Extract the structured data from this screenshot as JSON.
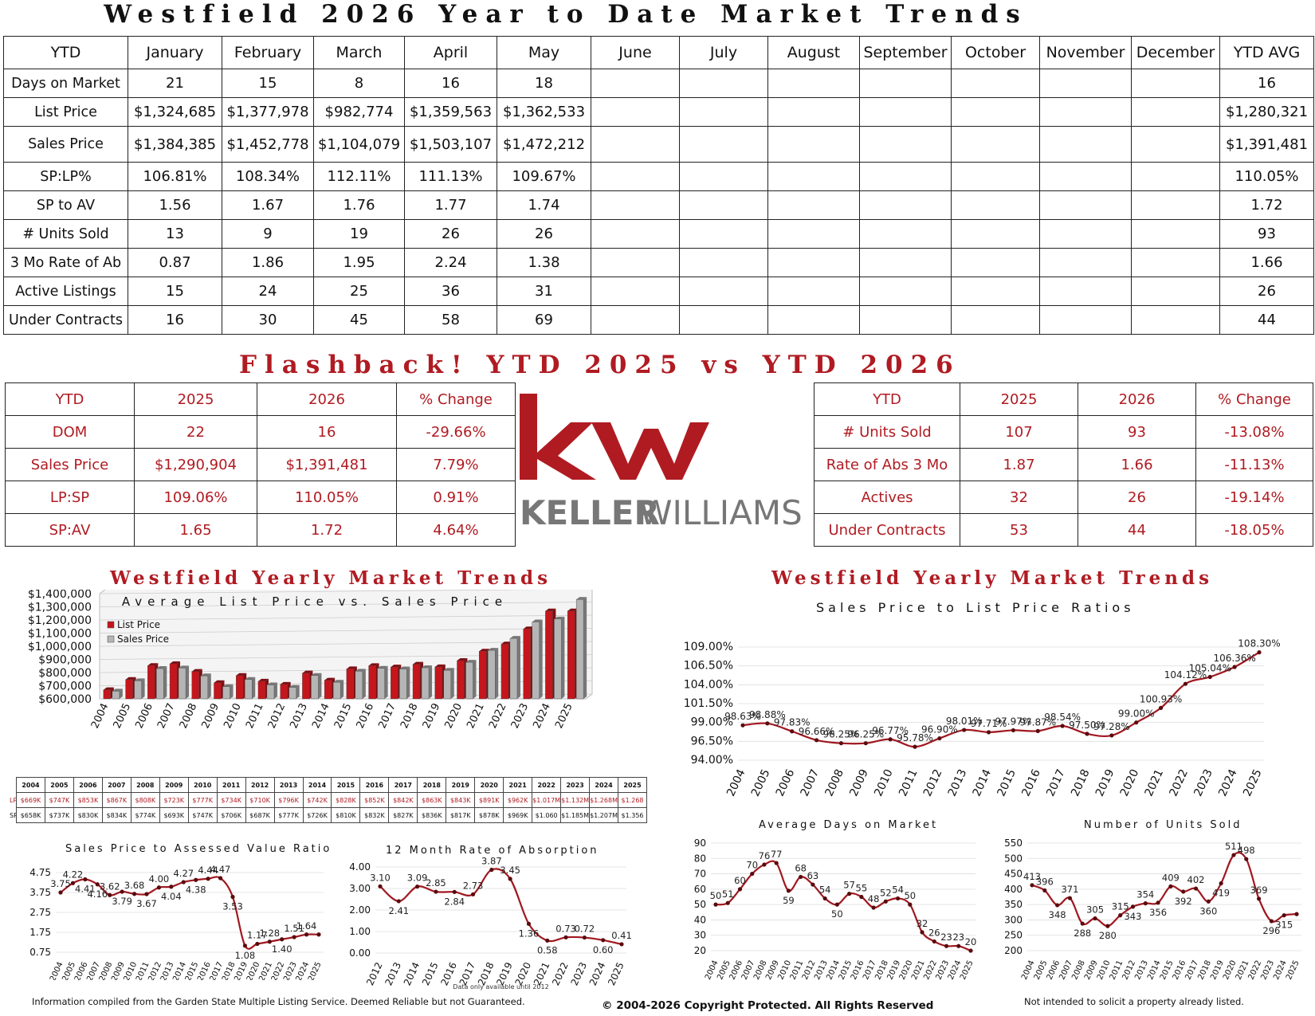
{
  "title": "Westfield 2026 Year to Date Market Trends",
  "ytd_table": {
    "header": [
      "YTD",
      "January",
      "February",
      "March",
      "April",
      "May",
      "June",
      "July",
      "August",
      "September",
      "October",
      "November",
      "December",
      "YTD AVG"
    ],
    "rows": [
      {
        "label": "Days on Market",
        "values": [
          "21",
          "15",
          "8",
          "16",
          "18",
          "",
          "",
          "",
          "",
          "",
          "",
          ""
        ],
        "avg": "16"
      },
      {
        "label": "List Price",
        "values": [
          "$1,324,685",
          "$1,377,978",
          "$982,774",
          "$1,359,563",
          "$1,362,533",
          "",
          "",
          "",
          "",
          "",
          "",
          ""
        ],
        "avg": "$1,280,321"
      },
      {
        "label": "Sales Price",
        "values": [
          "$1,384,385",
          "$1,452,778",
          "$1,104,079",
          "$1,503,107",
          "$1,472,212",
          "",
          "",
          "",
          "",
          "",
          "",
          ""
        ],
        "avg": "$1,391,481"
      },
      {
        "label": "SP:LP%",
        "values": [
          "106.81%",
          "108.34%",
          "112.11%",
          "111.13%",
          "109.67%",
          "",
          "",
          "",
          "",
          "",
          "",
          ""
        ],
        "avg": "110.05%"
      },
      {
        "label": "SP to AV",
        "values": [
          "1.56",
          "1.67",
          "1.76",
          "1.77",
          "1.74",
          "",
          "",
          "",
          "",
          "",
          "",
          ""
        ],
        "avg": "1.72"
      },
      {
        "label": "# Units Sold",
        "values": [
          "13",
          "9",
          "19",
          "26",
          "26",
          "",
          "",
          "",
          "",
          "",
          "",
          ""
        ],
        "avg": "93"
      },
      {
        "label": "3 Mo Rate of Ab",
        "values": [
          "0.87",
          "1.86",
          "1.95",
          "2.24",
          "1.38",
          "",
          "",
          "",
          "",
          "",
          "",
          ""
        ],
        "avg": "1.66"
      },
      {
        "label": "Active Listings",
        "values": [
          "15",
          "24",
          "25",
          "36",
          "31",
          "",
          "",
          "",
          "",
          "",
          "",
          ""
        ],
        "avg": "26"
      },
      {
        "label": "Under Contracts",
        "values": [
          "16",
          "30",
          "45",
          "58",
          "69",
          "",
          "",
          "",
          "",
          "",
          "",
          ""
        ],
        "avg": "44"
      }
    ]
  },
  "flashback_title": "Flashback!  YTD 2025 vs YTD 2026",
  "compare_left": {
    "header": [
      "YTD",
      "2025",
      "2026",
      "% Change"
    ],
    "rows": [
      [
        "DOM",
        "22",
        "16",
        "-29.66%"
      ],
      [
        "Sales Price",
        "$1,290,904",
        "$1,391,481",
        "7.79%"
      ],
      [
        "LP:SP",
        "109.06%",
        "110.05%",
        "0.91%"
      ],
      [
        "SP:AV",
        "1.65",
        "1.72",
        "4.64%"
      ]
    ]
  },
  "compare_right": {
    "header": [
      "YTD",
      "2025",
      "2026",
      "% Change"
    ],
    "rows": [
      [
        "# Units Sold",
        "107",
        "93",
        "-13.08%"
      ],
      [
        "Rate of Abs 3 Mo",
        "1.87",
        "1.66",
        "-11.13%"
      ],
      [
        "Actives",
        "32",
        "26",
        "-19.14%"
      ],
      [
        "Under Contracts",
        "53",
        "44",
        "-18.05%"
      ]
    ]
  },
  "logo": {
    "mark": "kw",
    "wordmark_bold": "KELLER",
    "wordmark_light": "WILLIAMS"
  },
  "left_section_title": "Westfield Yearly Market Trends",
  "right_section_title": "Westfield Yearly Market Trends",
  "yearly_table": {
    "years": [
      "2004",
      "2005",
      "2006",
      "2007",
      "2008",
      "2009",
      "2010",
      "2011",
      "2012",
      "2013",
      "2014",
      "2015",
      "2016",
      "2017",
      "2018",
      "2019",
      "2020",
      "2021",
      "2022",
      "2023",
      "2024",
      "2025"
    ],
    "lp_label": "LP",
    "sp_label": "SP",
    "lp": [
      "$669K",
      "$747K",
      "$853K",
      "$867K",
      "$808K",
      "$723K",
      "$777K",
      "$734K",
      "$710K",
      "$796K",
      "$742K",
      "$828K",
      "$852K",
      "$842K",
      "$863K",
      "$843K",
      "$891K",
      "$962K",
      "$1.017M",
      "$1.132M",
      "$1.268M",
      "$1.268"
    ],
    "sp": [
      "$658K",
      "$737K",
      "$830K",
      "$834K",
      "$774K",
      "$693K",
      "$747K",
      "$706K",
      "$687K",
      "$777K",
      "$726K",
      "$810K",
      "$832K",
      "$827K",
      "$836K",
      "$817K",
      "$878K",
      "$969K",
      "$1.060",
      "$1.185M",
      "$1.207M",
      "$1.356"
    ]
  },
  "footer": {
    "left": "Information compiled from the Garden State Multiple Listing Service.  Deemed Reliable but not Guaranteed.",
    "center": "© 2004-2026 Copyright Protected.  All Rights Reserved",
    "right": "Not intended to solicit a property already listed."
  },
  "colors": {
    "accent": "#b01b22",
    "gray_bar": "#b5b5b5",
    "line": "#a01820"
  },
  "chart_data": [
    {
      "id": "lp-sp",
      "type": "bar",
      "title": "Average List Price vs. Sales Price",
      "categories": [
        "2004",
        "2005",
        "2006",
        "2007",
        "2008",
        "2009",
        "2010",
        "2011",
        "2012",
        "2013",
        "2014",
        "2015",
        "2016",
        "2017",
        "2018",
        "2019",
        "2020",
        "2021",
        "2022",
        "2023",
        "2024",
        "2025"
      ],
      "series": [
        {
          "name": "List Price",
          "values": [
            669000,
            747000,
            853000,
            867000,
            808000,
            723000,
            777000,
            734000,
            710000,
            796000,
            742000,
            828000,
            852000,
            842000,
            863000,
            843000,
            891000,
            962000,
            1017000,
            1132000,
            1268000,
            1268000
          ]
        },
        {
          "name": "Sales Price",
          "values": [
            658000,
            737000,
            830000,
            834000,
            774000,
            693000,
            747000,
            706000,
            687000,
            777000,
            726000,
            810000,
            832000,
            827000,
            836000,
            817000,
            878000,
            969000,
            1060000,
            1185000,
            1207000,
            1356000
          ]
        }
      ],
      "yticks": [
        "$600,000",
        "$700,000",
        "$800,000",
        "$900,000",
        "$1,000,000",
        "$1,100,000",
        "$1,200,000",
        "$1,300,000",
        "$1,400,000"
      ],
      "ylim": [
        600000,
        1400000
      ],
      "legend": "top-left"
    },
    {
      "id": "sp-lp-ratio",
      "type": "line",
      "title": "Sales Price to List Price Ratios",
      "x": [
        "2004",
        "2005",
        "2006",
        "2007",
        "2008",
        "2009",
        "2010",
        "2011",
        "2012",
        "2013",
        "2014",
        "2015",
        "2016",
        "2017",
        "2018",
        "2019",
        "2020",
        "2021",
        "2022",
        "2023",
        "2024",
        "2025"
      ],
      "values": [
        98.63,
        98.88,
        97.83,
        96.66,
        96.25,
        96.25,
        96.77,
        95.78,
        96.9,
        98.01,
        97.71,
        97.97,
        97.87,
        98.54,
        97.5,
        97.28,
        99.0,
        100.93,
        104.12,
        105.04,
        106.36,
        108.3
      ],
      "labels": [
        "98.63%",
        "98.88%",
        "97.83%",
        "96.66%",
        "96.25%",
        "96.25%",
        "96.77%",
        "95.78%",
        "96.90%",
        "98.01%",
        "97.71%",
        "97.97%",
        "97.87%",
        "98.54%",
        "97.50%",
        "97.28%",
        "99.00%",
        "100.93%",
        "104.12%",
        "105.04%",
        "106.36%",
        "108.30%"
      ],
      "yticks": [
        "94.00%",
        "96.50%",
        "99.00%",
        "101.50%",
        "104.00%",
        "106.50%",
        "109.00%"
      ],
      "ylim": [
        94,
        109
      ]
    },
    {
      "id": "sp-av",
      "type": "line",
      "title": "Sales Price to Assessed Value Ratio",
      "x": [
        "2004",
        "2005",
        "2006",
        "2007",
        "2008",
        "2009",
        "2010",
        "2011",
        "2012",
        "2013",
        "2014",
        "2015",
        "2016",
        "2017",
        "2018",
        "2019",
        "2020",
        "2021",
        "2022",
        "2023",
        "2024",
        "2025"
      ],
      "values": [
        3.75,
        4.22,
        4.41,
        4.16,
        3.62,
        3.79,
        3.68,
        3.67,
        4.0,
        4.04,
        4.27,
        4.38,
        4.44,
        4.47,
        3.53,
        1.08,
        1.17,
        1.28,
        1.4,
        1.51,
        1.64,
        1.64
      ],
      "labels": [
        "3.75",
        "4.22",
        "4.41",
        "4.16",
        "3.62",
        "3.79",
        "3.68",
        "3.67",
        "4.00",
        "4.04",
        "4.27",
        "4.38",
        "4.44",
        "4.47",
        "3.53",
        "1.08",
        "1.17",
        "1.28",
        "1.40",
        "1.51",
        "1.64",
        ""
      ],
      "label_pos": [
        "above",
        "above",
        "below",
        "below",
        "above",
        "below",
        "above",
        "below",
        "above",
        "below",
        "above",
        "below",
        "above",
        "above",
        "below",
        "below",
        "above",
        "above",
        "below",
        "above",
        "above",
        "right"
      ],
      "yticks": [
        "0.75",
        "1.75",
        "2.75",
        "3.75",
        "4.75"
      ],
      "ylim": [
        0.75,
        4.75
      ]
    },
    {
      "id": "absorption",
      "type": "line",
      "title": "12 Month Rate of Absorption",
      "x": [
        "2012",
        "2013",
        "2014",
        "2015",
        "2016",
        "2017",
        "2018",
        "2019",
        "2020",
        "2021",
        "2022",
        "2023",
        "2024",
        "2025"
      ],
      "values": [
        3.1,
        2.41,
        3.09,
        2.85,
        2.84,
        2.73,
        3.87,
        3.45,
        1.36,
        0.58,
        0.73,
        0.72,
        0.6,
        0.41
      ],
      "labels": [
        "3.10",
        "2.41",
        "3.09",
        "2.85",
        "2.84",
        "2.73",
        "3.87",
        "3.45",
        "1.36",
        "0.58",
        "0.73",
        "0.72",
        "0.60",
        "0.41"
      ],
      "label_pos": [
        "above",
        "below",
        "above",
        "above",
        "below",
        "above",
        "above",
        "above",
        "below",
        "below",
        "above",
        "above",
        "below",
        "above"
      ],
      "yticks": [
        "0.00",
        "1.00",
        "2.00",
        "3.00",
        "4.00"
      ],
      "ylim": [
        0,
        4
      ],
      "note": "Data only available until 2012"
    },
    {
      "id": "dom",
      "type": "line",
      "title": "Average Days on Market",
      "x": [
        "2004",
        "2005",
        "2006",
        "2007",
        "2008",
        "2009",
        "2010",
        "2011",
        "2012",
        "2013",
        "2014",
        "2015",
        "2016",
        "2017",
        "2018",
        "2019",
        "2020",
        "2021",
        "2022",
        "2023",
        "2024",
        "2025"
      ],
      "values": [
        50,
        51,
        60,
        70,
        76,
        77,
        59,
        68,
        63,
        54,
        50,
        57,
        55,
        48,
        52,
        54,
        50,
        32,
        26,
        23,
        23,
        20
      ],
      "labels": [
        "50",
        "51",
        "60",
        "70",
        "76",
        "77",
        "59",
        "68",
        "63",
        "54",
        "50",
        "57",
        "55",
        "48",
        "52",
        "54",
        "50",
        "32",
        "26",
        "23",
        "23",
        "20"
      ],
      "label_pos": [
        "above",
        "above",
        "above",
        "above",
        "above",
        "above",
        "below",
        "above",
        "above",
        "above",
        "below",
        "above",
        "above",
        "above",
        "above",
        "above",
        "above",
        "above",
        "above",
        "above",
        "above",
        "above"
      ],
      "yticks": [
        "20",
        "30",
        "40",
        "50",
        "60",
        "70",
        "80",
        "90"
      ],
      "ylim": [
        20,
        90
      ]
    },
    {
      "id": "units",
      "type": "line",
      "title": "Number of Units Sold",
      "x": [
        "2004",
        "2005",
        "2006",
        "2007",
        "2008",
        "2009",
        "2010",
        "2011",
        "2012",
        "2013",
        "2014",
        "2015",
        "2016",
        "2017",
        "2018",
        "2019",
        "2020",
        "2021",
        "2022",
        "2023",
        "2024",
        "2025"
      ],
      "values": [
        413,
        396,
        348,
        371,
        288,
        305,
        280,
        315,
        343,
        354,
        356,
        409,
        392,
        402,
        360,
        419,
        511,
        498,
        369,
        296,
        315,
        319
      ],
      "labels": [
        "413",
        "396",
        "348",
        "371",
        "288",
        "305",
        "280",
        "315",
        "343",
        "354",
        "356",
        "409",
        "392",
        "402",
        "360",
        "419",
        "511",
        "498",
        "369",
        "296",
        "315",
        ""
      ],
      "label_pos": [
        "above",
        "above",
        "below",
        "above",
        "below",
        "above",
        "below",
        "above",
        "below",
        "above",
        "below",
        "above",
        "below",
        "above",
        "below",
        "below",
        "above",
        "above",
        "above",
        "below",
        "below",
        "above"
      ],
      "yticks": [
        "200",
        "250",
        "300",
        "350",
        "400",
        "450",
        "500",
        "550"
      ],
      "ylim": [
        200,
        550
      ]
    }
  ]
}
